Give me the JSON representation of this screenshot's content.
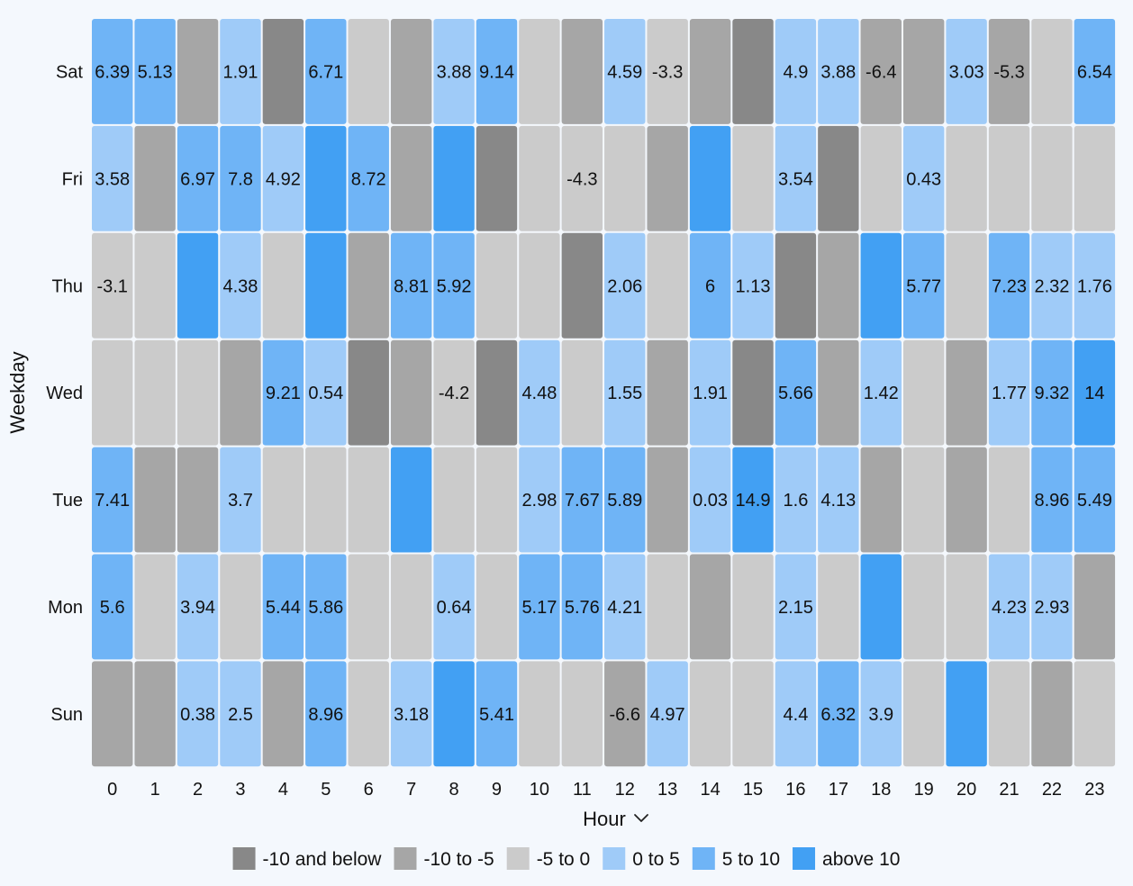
{
  "chart_data": {
    "type": "heatmap",
    "xlabel": "Hour",
    "ylabel": "Weekday",
    "x": [
      "0",
      "1",
      "2",
      "3",
      "4",
      "5",
      "6",
      "7",
      "8",
      "9",
      "10",
      "11",
      "12",
      "13",
      "14",
      "15",
      "16",
      "17",
      "18",
      "19",
      "20",
      "21",
      "22",
      "23"
    ],
    "y": [
      "Sat",
      "Fri",
      "Thu",
      "Wed",
      "Tue",
      "Mon",
      "Sun"
    ],
    "values": [
      [
        6.39,
        5.13,
        -6.5,
        1.91,
        -11.5,
        6.71,
        -2.5,
        -6.5,
        3.88,
        9.14,
        -2.5,
        -6.5,
        4.59,
        -3.3,
        -6.5,
        -11.5,
        4.9,
        3.88,
        -6.4,
        -6.5,
        3.03,
        -5.3,
        -2.5,
        6.54
      ],
      [
        3.58,
        -6.5,
        6.97,
        7.8,
        4.92,
        12,
        8.72,
        -6.5,
        12,
        -11.5,
        -2.5,
        -4.3,
        -2.5,
        -6.5,
        12,
        -2.5,
        3.54,
        -11.5,
        -2.5,
        0.43,
        -2.5,
        -2.5,
        -2.5,
        -2.5
      ],
      [
        -3.1,
        -2.5,
        12,
        4.38,
        -2.5,
        12,
        -6.5,
        8.81,
        5.92,
        -2.5,
        -2.5,
        -11.5,
        2.06,
        -2.5,
        6,
        1.13,
        -11.5,
        -6.5,
        12,
        5.77,
        -2.5,
        7.23,
        2.32,
        1.76
      ],
      [
        -2.5,
        -2.5,
        -2.5,
        -6.5,
        9.21,
        0.54,
        -11.5,
        -6.5,
        -4.2,
        -11.5,
        4.48,
        -2.5,
        1.55,
        -6.5,
        1.91,
        -11.5,
        5.66,
        -6.5,
        1.42,
        -2.5,
        -6.5,
        1.77,
        9.32,
        14
      ],
      [
        7.41,
        -6.5,
        -6.5,
        3.7,
        -2.5,
        -2.5,
        -2.5,
        12,
        -2.5,
        -2.5,
        2.98,
        7.67,
        5.89,
        -6.5,
        0.03,
        14.9,
        1.6,
        4.13,
        -6.5,
        -2.5,
        -6.5,
        -2.5,
        8.96,
        5.49
      ],
      [
        5.6,
        -2.5,
        3.94,
        -2.5,
        5.44,
        5.86,
        -2.5,
        -2.5,
        0.64,
        -2.5,
        5.17,
        5.76,
        4.21,
        -2.5,
        -6.5,
        -2.5,
        2.15,
        -2.5,
        12,
        -2.5,
        -2.5,
        4.23,
        2.93,
        -6.5
      ],
      [
        -6.5,
        -6.5,
        0.38,
        2.5,
        -6.5,
        8.96,
        -2.5,
        3.18,
        12,
        5.41,
        -2.5,
        -2.5,
        -6.6,
        4.97,
        -2.5,
        -2.5,
        4.4,
        6.32,
        3.9,
        -2.5,
        12,
        -2.5,
        -6.5,
        -2.5
      ]
    ],
    "labels": [
      [
        "6.39",
        "5.13",
        "",
        "1.91",
        "",
        "6.71",
        "",
        "",
        "3.88",
        "9.14",
        "",
        "",
        "4.59",
        "-3.3",
        "",
        "",
        "4.9",
        "3.88",
        "-6.4",
        "",
        "3.03",
        "-5.3",
        "",
        "6.54"
      ],
      [
        "3.58",
        "",
        "6.97",
        "7.8",
        "4.92",
        "",
        "8.72",
        "",
        "",
        "",
        "",
        "-4.3",
        "",
        "",
        "",
        "",
        "3.54",
        "",
        "",
        "0.43",
        "",
        "",
        "",
        ""
      ],
      [
        "-3.1",
        "",
        "",
        "4.38",
        "",
        "",
        "",
        "8.81",
        "5.92",
        "",
        "",
        "",
        "2.06",
        "",
        "6",
        "1.13",
        "",
        "",
        "",
        "5.77",
        "",
        "7.23",
        "2.32",
        "1.76"
      ],
      [
        "",
        "",
        "",
        "",
        "9.21",
        "0.54",
        "",
        "",
        "-4.2",
        "",
        "4.48",
        "",
        "1.55",
        "",
        "1.91",
        "",
        "5.66",
        "",
        "1.42",
        "",
        "",
        "1.77",
        "9.32",
        "14"
      ],
      [
        "7.41",
        "",
        "",
        "3.7",
        "",
        "",
        "",
        "",
        "",
        "",
        "2.98",
        "7.67",
        "5.89",
        "",
        "0.03",
        "14.9",
        "1.6",
        "4.13",
        "",
        "",
        "",
        "",
        "8.96",
        "5.49"
      ],
      [
        "5.6",
        "",
        "3.94",
        "",
        "5.44",
        "5.86",
        "",
        "",
        "0.64",
        "",
        "5.17",
        "5.76",
        "4.21",
        "",
        "",
        "",
        "2.15",
        "",
        "",
        "",
        "",
        "4.23",
        "2.93",
        ""
      ],
      [
        "",
        "",
        "0.38",
        "2.5",
        "",
        "8.96",
        "",
        "3.18",
        "",
        "5.41",
        "",
        "",
        "-6.6",
        "4.97",
        "",
        "",
        "4.4",
        "6.32",
        "3.9",
        "",
        "",
        "",
        "",
        ""
      ]
    ],
    "color_bins": [
      {
        "label": "-10 and below",
        "max": -10,
        "color": "#888888"
      },
      {
        "label": "-10 to -5",
        "min": -10,
        "max": -5,
        "color": "#a6a6a6"
      },
      {
        "label": "-5 to 0",
        "min": -5,
        "max": 0,
        "color": "#cbcbcb"
      },
      {
        "label": "0 to 5",
        "min": 0,
        "max": 5,
        "color": "#9fcbf8"
      },
      {
        "label": "5 to 10",
        "min": 5,
        "max": 10,
        "color": "#6fb4f6"
      },
      {
        "label": "above 10",
        "min": 10,
        "color": "#42a0f3"
      }
    ],
    "legend_position": "bottom",
    "x_sort_icon": "chevron-down-icon"
  }
}
